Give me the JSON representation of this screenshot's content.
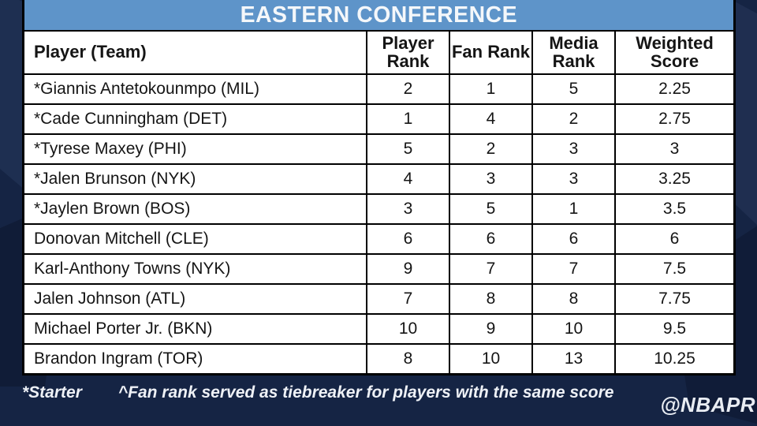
{
  "title": "EASTERN CONFERENCE",
  "table": {
    "headers": [
      "Player (Team)",
      "Player Rank",
      "Fan Rank",
      "Media Rank",
      "Weighted Score"
    ],
    "rows": [
      [
        "*Giannis Antetokounmpo (MIL)",
        "2",
        "1",
        "5",
        "2.25"
      ],
      [
        "*Cade Cunningham (DET)",
        "1",
        "4",
        "2",
        "2.75"
      ],
      [
        "*Tyrese Maxey (PHI)",
        "5",
        "2",
        "3",
        "3"
      ],
      [
        "*Jalen Brunson (NYK)",
        "4",
        "3",
        "3",
        "3.25"
      ],
      [
        "*Jaylen Brown (BOS)",
        "3",
        "5",
        "1",
        "3.5"
      ],
      [
        "Donovan Mitchell (CLE)",
        "6",
        "6",
        "6",
        "6"
      ],
      [
        "Karl-Anthony Towns (NYK)",
        "9",
        "7",
        "7",
        "7.5"
      ],
      [
        "Jalen Johnson (ATL)",
        "7",
        "8",
        "8",
        "7.75"
      ],
      [
        "Michael Porter Jr. (BKN)",
        "10",
        "9",
        "10",
        "9.5"
      ],
      [
        "Brandon Ingram (TOR)",
        "8",
        "10",
        "13",
        "10.25"
      ]
    ]
  },
  "footnotes": {
    "starter": "*Starter",
    "tiebreaker": "^Fan rank served as tiebreaker for players with the same score"
  },
  "watermark": "@NBAPR",
  "colors": {
    "header_blue": "#5e94c9",
    "background_navy": "#152444",
    "table_white": "#ffffff",
    "border_black": "#000000",
    "text_black": "#151515",
    "text_white": "#eef1f6"
  },
  "chart_data": {
    "type": "table",
    "title": "EASTERN CONFERENCE",
    "columns": [
      "Player (Team)",
      "Player Rank",
      "Fan Rank",
      "Media Rank",
      "Weighted Score"
    ],
    "rows": [
      {
        "player": "*Giannis Antetokounmpo (MIL)",
        "player_rank": 2,
        "fan_rank": 1,
        "media_rank": 5,
        "weighted_score": 2.25
      },
      {
        "player": "*Cade Cunningham (DET)",
        "player_rank": 1,
        "fan_rank": 4,
        "media_rank": 2,
        "weighted_score": 2.75
      },
      {
        "player": "*Tyrese Maxey (PHI)",
        "player_rank": 5,
        "fan_rank": 2,
        "media_rank": 3,
        "weighted_score": 3
      },
      {
        "player": "*Jalen Brunson (NYK)",
        "player_rank": 4,
        "fan_rank": 3,
        "media_rank": 3,
        "weighted_score": 3.25
      },
      {
        "player": "*Jaylen Brown (BOS)",
        "player_rank": 3,
        "fan_rank": 5,
        "media_rank": 1,
        "weighted_score": 3.5
      },
      {
        "player": "Donovan Mitchell (CLE)",
        "player_rank": 6,
        "fan_rank": 6,
        "media_rank": 6,
        "weighted_score": 6
      },
      {
        "player": "Karl-Anthony Towns (NYK)",
        "player_rank": 9,
        "fan_rank": 7,
        "media_rank": 7,
        "weighted_score": 7.5
      },
      {
        "player": "Jalen Johnson (ATL)",
        "player_rank": 7,
        "fan_rank": 8,
        "media_rank": 8,
        "weighted_score": 7.75
      },
      {
        "player": "Michael Porter Jr. (BKN)",
        "player_rank": 10,
        "fan_rank": 9,
        "media_rank": 10,
        "weighted_score": 9.5
      },
      {
        "player": "Brandon Ingram (TOR)",
        "player_rank": 8,
        "fan_rank": 10,
        "media_rank": 13,
        "weighted_score": 10.25
      }
    ],
    "notes": [
      "*Starter",
      "^Fan rank served as tiebreaker for players with the same score"
    ]
  }
}
